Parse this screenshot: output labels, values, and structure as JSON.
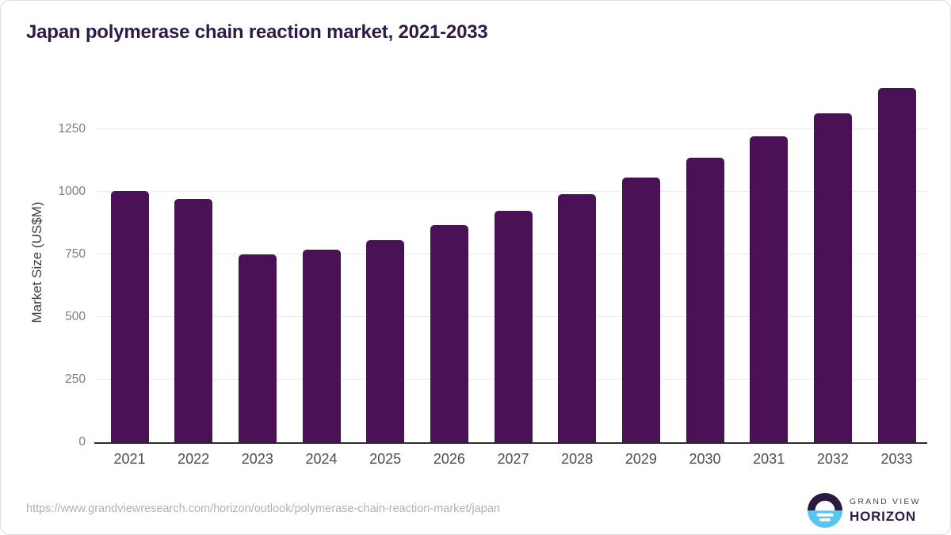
{
  "chart_data": {
    "type": "bar",
    "title": "Japan polymerase chain reaction market, 2021-2033",
    "categories": [
      "2021",
      "2022",
      "2023",
      "2024",
      "2025",
      "2026",
      "2027",
      "2028",
      "2029",
      "2030",
      "2031",
      "2032",
      "2033"
    ],
    "values": [
      1004,
      972,
      750,
      770,
      808,
      866,
      925,
      989,
      1057,
      1136,
      1221,
      1312,
      1413
    ],
    "xlabel": "",
    "ylabel": "Market Size (US$M)",
    "ylim": [
      0,
      1450
    ],
    "yticks": [
      0,
      250,
      500,
      750,
      1000,
      1250
    ],
    "grid": "horizontal",
    "legend": "none",
    "bar_color": "#4a1157"
  },
  "footer": {
    "source_url": "https://www.grandviewresearch.com/horizon/outlook/polymerase-chain-reaction-market/japan",
    "logo": {
      "line1": "GRAND VIEW",
      "line2": "HORIZON",
      "icon": "horizon-sunset-icon",
      "dark_color": "#2b1b40",
      "blue_color": "#5ac4f0"
    }
  }
}
